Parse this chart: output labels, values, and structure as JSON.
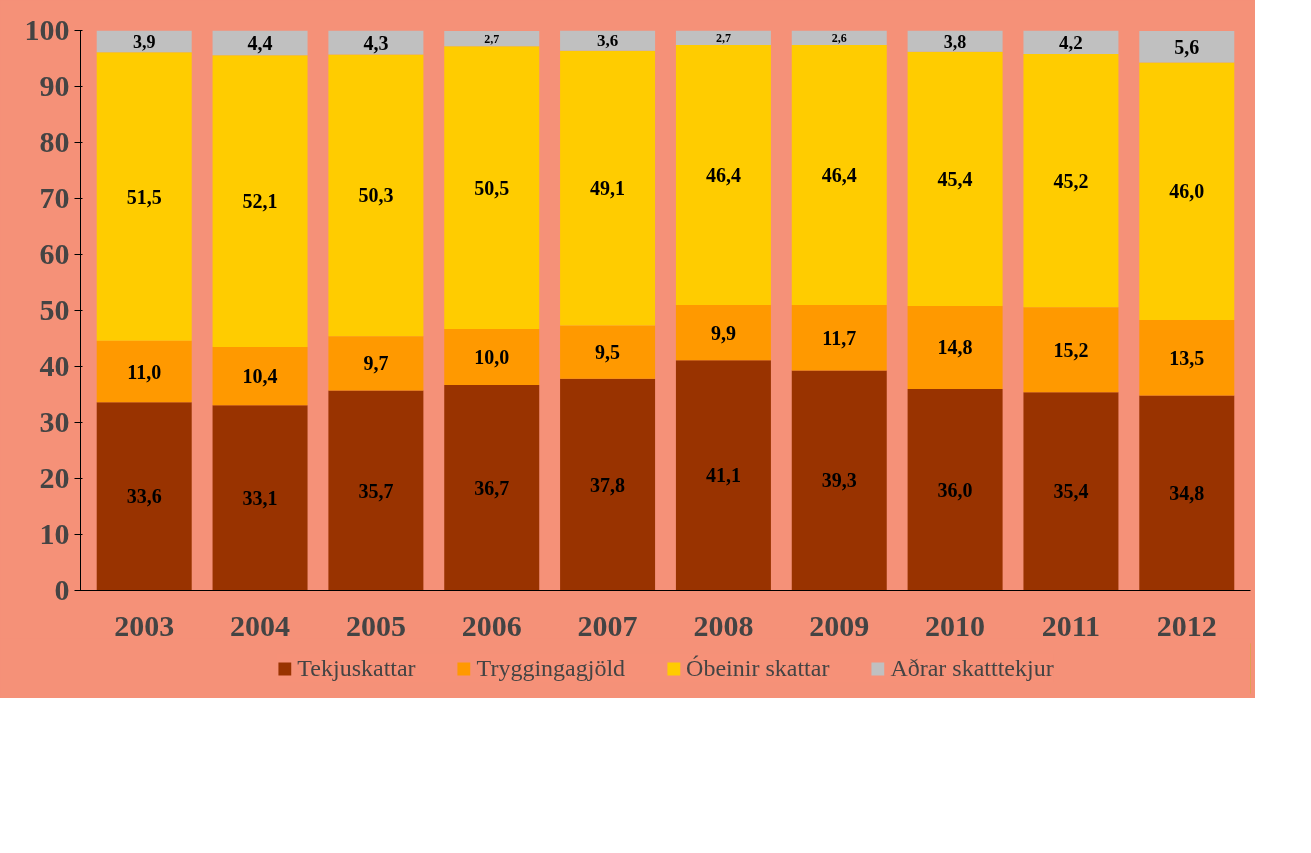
{
  "chart_data": {
    "type": "bar",
    "stacked": true,
    "categories": [
      "2003",
      "2004",
      "2005",
      "2006",
      "2007",
      "2008",
      "2009",
      "2010",
      "2011",
      "2012"
    ],
    "ylim": [
      0,
      100
    ],
    "yticks": [
      0,
      10,
      20,
      30,
      40,
      50,
      60,
      70,
      80,
      90,
      100
    ],
    "grid": false,
    "legend": "bottom",
    "series": [
      {
        "name": "Tekjuskattar",
        "color": "#993300",
        "values": [
          33.6,
          33.1,
          35.7,
          36.7,
          37.8,
          41.1,
          39.3,
          36.0,
          35.4,
          34.8
        ],
        "value_labels": [
          "33,6",
          "33,1",
          "35,7",
          "36,7",
          "37,8",
          "41,1",
          "39,3",
          "36,0",
          "35,4",
          "34,8"
        ]
      },
      {
        "name": "Tryggingagjöld",
        "color": "#ff9900",
        "values": [
          11.0,
          10.4,
          9.7,
          10.0,
          9.5,
          9.9,
          11.7,
          14.8,
          15.2,
          13.5
        ],
        "value_labels": [
          "11,0",
          "10,4",
          "9,7",
          "10,0",
          "9,5",
          "9,9",
          "11,7",
          "14,8",
          "15,2",
          "13,5"
        ]
      },
      {
        "name": "Óbeinir skattar",
        "color": "#ffcc00",
        "values": [
          51.5,
          52.1,
          50.3,
          50.5,
          49.1,
          46.4,
          46.4,
          45.4,
          45.2,
          46.0
        ],
        "value_labels": [
          "51,5",
          "52,1",
          "50,3",
          "50,5",
          "49,1",
          "46,4",
          "46,4",
          "45,4",
          "45,2",
          "46,0"
        ]
      },
      {
        "name": "Aðrar skatttekjur",
        "color": "#c0c0c0",
        "values": [
          3.9,
          4.4,
          4.3,
          2.7,
          3.6,
          2.7,
          2.6,
          3.8,
          4.2,
          5.6
        ],
        "value_labels": [
          "3,9",
          "4,4",
          "4,3",
          "2,7",
          "3,6",
          "2,7",
          "2,6",
          "3,8",
          "4,2",
          "5,6"
        ]
      }
    ]
  }
}
